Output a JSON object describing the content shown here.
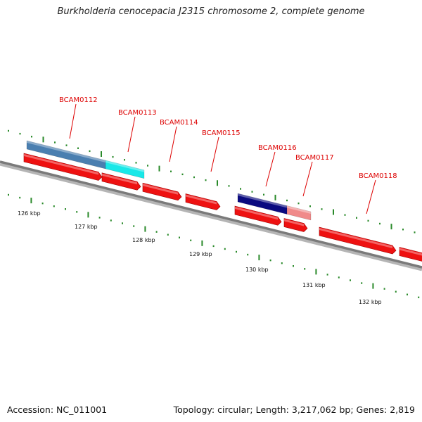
{
  "title": "Burkholderia cenocepacia J2315 chromosome 2, complete genome",
  "footer": {
    "accession": "Accession: NC_011001",
    "summary": "Topology: circular; Length: 3,217,062 bp; Genes: 2,819"
  },
  "colors": {
    "gene_forward": "#ee1111",
    "backbone": "#7a7a7a",
    "ticks": "#2a8a2a",
    "label": "#dd0000"
  },
  "kbp_labels": [
    "126 kbp",
    "127 kbp",
    "128 kbp",
    "129 kbp",
    "130 kbp",
    "131 kbp",
    "132 kbp"
  ],
  "genes": [
    {
      "name": "BCAM0112",
      "cog_color": "#4a7fb0"
    },
    {
      "name": "BCAM0113",
      "cog_color": "#19e8e8"
    },
    {
      "name": "BCAM0114",
      "cog_color": null
    },
    {
      "name": "BCAM0115",
      "cog_color": null
    },
    {
      "name": "BCAM0116",
      "cog_color": "#0a0a80"
    },
    {
      "name": "BCAM0117",
      "cog_color": "#f08a8a"
    },
    {
      "name": "BCAM0118",
      "cog_color": null
    }
  ]
}
